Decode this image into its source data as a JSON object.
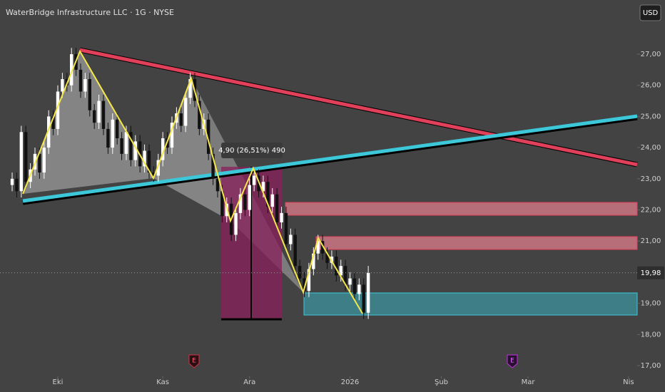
{
  "header": {
    "symbol": "WaterBridge Infrastructure LLC · 1G · NYSE",
    "currency": "USD"
  },
  "chart_data": {
    "type": "candlestick",
    "open": [
      22.8,
      23.0,
      22.6,
      24.5,
      22.9,
      23.3,
      23.8,
      23.2,
      24.0,
      25.0,
      24.6,
      25.8,
      26.2,
      26.0,
      27.0,
      26.5,
      25.8,
      26.2,
      25.2,
      24.8,
      25.5,
      24.6,
      24.0,
      24.9,
      24.3,
      23.8,
      24.5,
      23.6,
      24.2,
      23.4,
      23.9,
      23.2,
      23.1,
      23.6,
      24.3,
      24.0,
      24.8,
      25.1,
      24.7,
      25.6,
      26.2,
      25.5,
      24.6,
      24.9,
      23.8,
      23.0,
      22.6,
      21.8,
      22.2,
      21.2,
      21.9,
      22.5,
      22.0,
      22.8,
      23.1,
      22.6,
      22.9,
      22.1,
      22.5,
      21.6,
      21.9,
      20.9,
      21.2,
      20.2,
      19.8,
      19.4,
      20.1,
      20.6,
      21.0,
      20.6,
      20.3,
      20.5,
      19.9,
      20.2,
      19.6,
      19.8,
      19.3,
      19.6,
      18.7
    ],
    "high": [
      23.2,
      23.2,
      24.7,
      24.7,
      23.5,
      24.0,
      24.0,
      24.2,
      25.2,
      25.2,
      26.0,
      26.4,
      26.4,
      27.2,
      27.2,
      26.7,
      26.4,
      26.4,
      25.4,
      25.7,
      25.7,
      24.8,
      25.1,
      25.1,
      24.5,
      24.7,
      24.7,
      24.4,
      24.4,
      24.1,
      24.1,
      23.4,
      23.8,
      24.5,
      24.5,
      25.0,
      25.3,
      25.3,
      25.8,
      26.4,
      26.4,
      25.7,
      25.1,
      25.1,
      24.0,
      23.2,
      22.8,
      22.4,
      22.4,
      22.1,
      22.7,
      22.7,
      23.0,
      23.3,
      23.3,
      23.1,
      23.1,
      22.7,
      22.7,
      22.1,
      22.1,
      21.4,
      21.4,
      20.4,
      20.0,
      20.3,
      20.8,
      21.2,
      21.2,
      20.8,
      20.7,
      20.7,
      20.4,
      20.4,
      20.0,
      20.0,
      19.8,
      19.8,
      20.2
    ],
    "low": [
      22.6,
      22.4,
      22.4,
      22.7,
      22.7,
      23.1,
      23.0,
      23.0,
      23.8,
      24.4,
      24.4,
      25.6,
      25.8,
      25.8,
      26.3,
      25.6,
      25.6,
      25.0,
      24.6,
      24.6,
      24.4,
      23.8,
      23.8,
      24.1,
      23.6,
      23.6,
      23.4,
      23.4,
      23.2,
      23.2,
      23.0,
      22.9,
      22.9,
      23.4,
      23.8,
      23.8,
      24.6,
      24.5,
      24.5,
      25.4,
      25.3,
      24.4,
      24.4,
      23.6,
      22.8,
      22.4,
      21.6,
      21.6,
      21.0,
      21.0,
      21.7,
      21.8,
      21.8,
      22.6,
      22.4,
      22.4,
      21.9,
      21.9,
      21.4,
      21.4,
      20.7,
      20.7,
      20.0,
      19.6,
      19.2,
      19.2,
      19.9,
      20.4,
      20.4,
      20.1,
      20.1,
      19.7,
      19.7,
      19.4,
      19.4,
      19.1,
      19.1,
      18.5,
      18.5
    ],
    "close": [
      23.0,
      22.6,
      24.5,
      22.9,
      23.3,
      23.8,
      23.2,
      24.0,
      25.0,
      24.6,
      25.8,
      26.2,
      26.0,
      27.0,
      26.5,
      25.8,
      26.2,
      25.2,
      24.8,
      25.5,
      24.6,
      24.0,
      24.9,
      24.3,
      23.8,
      24.5,
      23.6,
      24.2,
      23.4,
      23.9,
      23.2,
      23.1,
      23.6,
      24.3,
      24.0,
      24.8,
      25.1,
      24.7,
      25.6,
      26.2,
      25.5,
      24.6,
      24.9,
      23.8,
      23.0,
      22.6,
      21.8,
      22.2,
      21.2,
      21.9,
      22.5,
      22.0,
      22.8,
      23.1,
      22.6,
      22.9,
      22.1,
      22.5,
      21.6,
      21.9,
      20.9,
      21.2,
      20.2,
      19.8,
      19.4,
      20.1,
      20.6,
      21.0,
      20.6,
      20.3,
      20.5,
      19.9,
      20.2,
      19.6,
      19.8,
      19.3,
      19.6,
      18.7,
      19.98
    ],
    "up_color": "#ffffff",
    "down_color": "#111111",
    "ylim": [
      16.84,
      28.74
    ],
    "yticks": [
      {
        "value": 17,
        "label": "17,00"
      },
      {
        "value": 18,
        "label": "18,00"
      },
      {
        "value": 19,
        "label": "19,00"
      },
      {
        "value": 20,
        "label": "20,00"
      },
      {
        "value": 21,
        "label": "21,00"
      },
      {
        "value": 22,
        "label": "22,00"
      },
      {
        "value": 23,
        "label": "23,00"
      },
      {
        "value": 24,
        "label": "24,00"
      },
      {
        "value": 25,
        "label": "25,00"
      },
      {
        "value": 26,
        "label": "26,00"
      },
      {
        "value": 27,
        "label": "27,00"
      }
    ],
    "xlim": [
      -2.66,
      136.9
    ],
    "xticks": [
      {
        "value": 10,
        "label": "Eki"
      },
      {
        "value": 33,
        "label": "Kas"
      },
      {
        "value": 52,
        "label": "Ara"
      },
      {
        "value": 74,
        "label": "2026"
      },
      {
        "value": 94,
        "label": "Şub"
      },
      {
        "value": 113,
        "label": "Mar"
      },
      {
        "value": 135,
        "label": "Nis"
      }
    ],
    "last_price": {
      "value": 19.98,
      "label": "19,98"
    },
    "measure_label": "4,90 (26,51%) 490",
    "events": [
      "E",
      "E"
    ]
  }
}
